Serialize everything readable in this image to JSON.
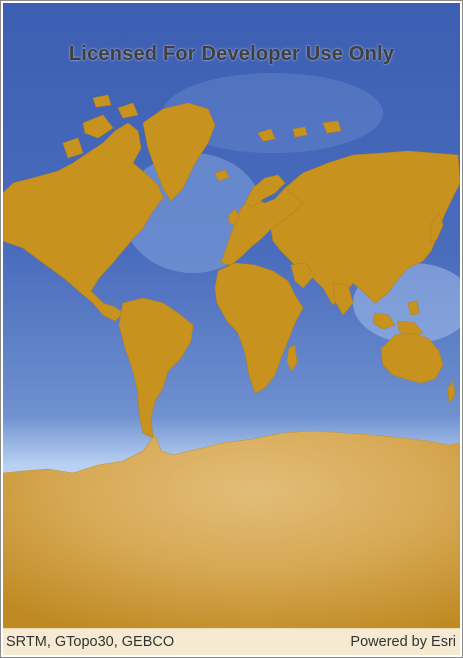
{
  "map": {
    "watermark": "Licensed For Developer Use Only",
    "basemap": "oceans-terrain-world",
    "colors": {
      "ocean_deep": "#3f5fb0",
      "ocean_shallow": "#c5d9f4",
      "land": "#c99224",
      "land_light": "#ddb46a"
    }
  },
  "attribution": {
    "sources": "SRTM, GTopo30, GEBCO",
    "powered_by": "Powered by Esri"
  }
}
